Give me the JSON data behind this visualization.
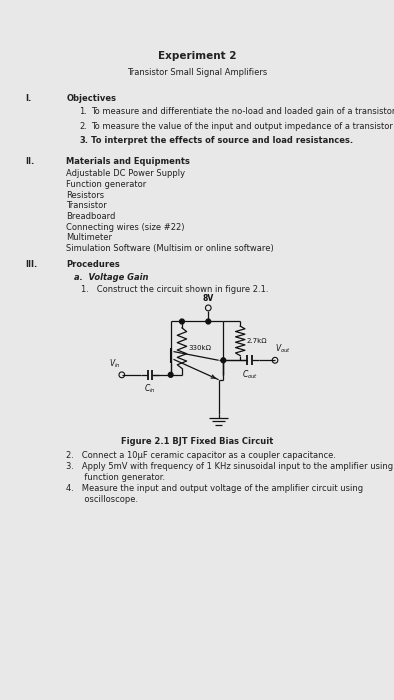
{
  "title": "Experiment 2",
  "subtitle": "Transistor Small Signal Amplifiers",
  "bg_outer": "#e8e8e8",
  "bg_page": "#ffffff",
  "text_color": "#222222",
  "fs_title": 7.5,
  "fs_body": 6.0,
  "fs_circuit": 5.5,
  "section_I_header": "I.",
  "section_I_title": "Objectives",
  "objectives": [
    "To measure and differentiate the no-load and loaded gain of a transistor circuit.",
    "To measure the value of the input and output impedance of a transistor amplifier.",
    "To interpret the effects of source and load resistances."
  ],
  "obj_bold": [
    false,
    false,
    true
  ],
  "section_II_header": "II.",
  "section_II_title": "Materials and Equipments",
  "materials": [
    "Adjustable DC Power Supply",
    "Function generator",
    "Resistors",
    "Transistor",
    "Breadboard",
    "Connecting wires (size #22)",
    "Multimeter",
    "Simulation Software (Multisim or online software)"
  ],
  "section_III_header": "III.",
  "section_III_title": "Procedures",
  "subsection_a_title": "Voltage Gain",
  "proc1": "1.   Construct the circuit shown in figure 2.1.",
  "figure_caption": "Figure 2.1 BJT Fixed Bias Circuit",
  "proc2": "2.   Connect a 10μF ceramic capacitor as a coupler capacitance.",
  "proc3a": "3.   Apply 5mV with frequency of 1 KHz sinusoidal input to the amplifier using",
  "proc3b": "       function generator.",
  "proc4a": "4.   Measure the input and output voltage of the amplifier circuit using",
  "proc4b": "       oscilloscope."
}
